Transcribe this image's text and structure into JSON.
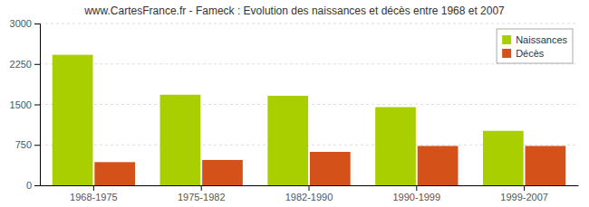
{
  "chart_data": {
    "type": "bar",
    "title": "www.CartesFrance.fr - Fameck : Evolution des naissances et décès entre 1968 et 2007",
    "categories": [
      "1968-1975",
      "1975-1982",
      "1982-1990",
      "1990-1999",
      "1999-2007"
    ],
    "series": [
      {
        "name": "Naissances",
        "color": "#AACF00",
        "values": [
          2420,
          1680,
          1660,
          1450,
          1010
        ]
      },
      {
        "name": "Décès",
        "color": "#D4521A",
        "values": [
          430,
          470,
          620,
          730,
          730
        ]
      }
    ],
    "ylim": [
      0,
      3000
    ],
    "yticks": [
      0,
      750,
      1500,
      2250,
      3000
    ],
    "grid": true,
    "legend": "upper right"
  }
}
